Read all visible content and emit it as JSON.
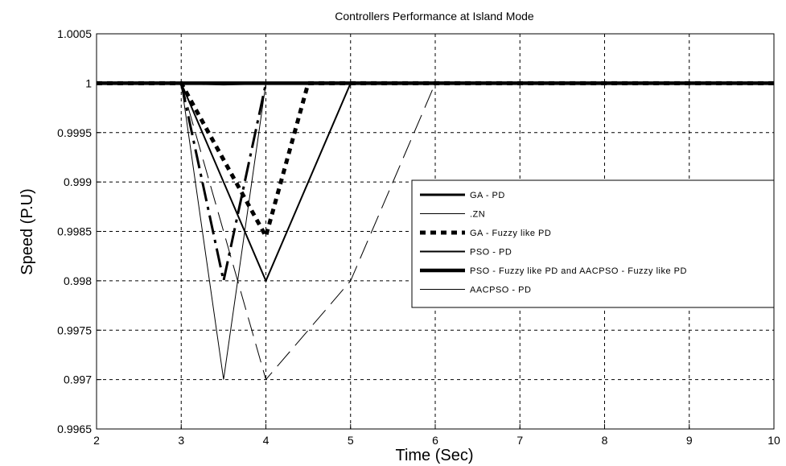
{
  "chart_data": {
    "type": "line",
    "title": "Controllers Performance at Island Mode",
    "xlabel": "Time (Sec)",
    "ylabel": "Speed (P.U)",
    "xlim": [
      2,
      10
    ],
    "ylim": [
      0.9965,
      1.0005
    ],
    "grid": true,
    "legend_position": "right",
    "x_ticks": [
      "2",
      "3",
      "4",
      "5",
      "6",
      "7",
      "8",
      "9",
      "10"
    ],
    "y_ticks": [
      "0.9965",
      "0.997",
      "0.9975",
      "0.998",
      "0.9985",
      "0.999",
      "0.9995",
      "1",
      "1.0005"
    ],
    "series": [
      {
        "name": "GA - PD",
        "style": "solid-thick",
        "color": "#000000",
        "x": [
          2,
          3,
          3.5,
          4,
          10
        ],
        "y": [
          1.0,
          1.0,
          0.99999,
          1.0,
          1.0
        ]
      },
      {
        "name": "ZN",
        "style": "long-dash",
        "color": "#000000",
        "x": [
          2,
          3,
          4,
          5,
          6,
          10
        ],
        "y": [
          1.0,
          1.0,
          0.997,
          0.998,
          1.0,
          1.0
        ]
      },
      {
        "name": "GA - Fuzzy like PD",
        "style": "dotted-thick",
        "color": "#000000",
        "x": [
          2,
          3,
          4,
          4.5,
          10
        ],
        "y": [
          1.0,
          1.0,
          0.99845,
          1.0,
          1.0
        ]
      },
      {
        "name": "PSO - PD",
        "style": "solid",
        "color": "#000000",
        "x": [
          2,
          3,
          4,
          5,
          10
        ],
        "y": [
          1.0,
          1.0,
          0.998,
          1.0,
          1.0
        ]
      },
      {
        "name": "PSO - Fuzzy like PD and AACPSO - Fuzzy like PD",
        "style": "solid-heavy",
        "color": "#000000",
        "x": [
          2,
          10
        ],
        "y": [
          1.0,
          1.0
        ]
      },
      {
        "name": "AACPSO - PD",
        "style": "solid-thin",
        "color": "#000000",
        "x": [
          2,
          3,
          3.5,
          4,
          10
        ],
        "y": [
          1.0,
          1.0,
          0.997,
          1.0,
          1.0
        ]
      },
      {
        "name": "",
        "style": "dash-dot-heavy",
        "color": "#000000",
        "x": [
          3,
          3.5,
          4
        ],
        "y": [
          1.0,
          0.998,
          1.0
        ]
      }
    ],
    "legend": [
      {
        "label": "GA - PD",
        "style": "solid-thick"
      },
      {
        "label": ".ZN",
        "style": "solid-thin"
      },
      {
        "label": "GA - Fuzzy like PD",
        "style": "dotted-thick"
      },
      {
        "label": "PSO - PD",
        "style": "solid"
      },
      {
        "label": "PSO - Fuzzy like PD and AACPSO - Fuzzy like PD",
        "style": "solid-heavy"
      },
      {
        "label": "AACPSO - PD",
        "style": "solid-thin"
      }
    ]
  }
}
